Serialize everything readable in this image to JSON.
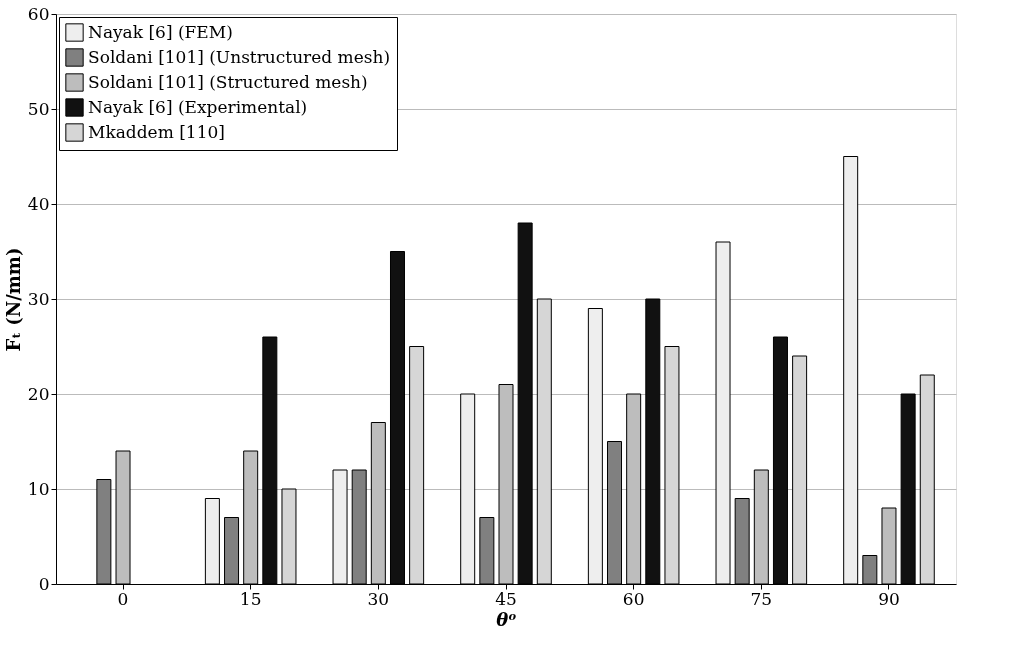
{
  "chart_data": {
    "type": "bar",
    "xlabel": "θᵒ",
    "ylabel": "Fₜ (N/mm)",
    "categories": [
      "0",
      "15",
      "30",
      "45",
      "60",
      "75",
      "90"
    ],
    "series": [
      {
        "name": "Nayak [6] (FEM)",
        "color": "#eeeeee",
        "values": [
          null,
          9,
          12,
          20,
          29,
          36,
          45
        ]
      },
      {
        "name": "Soldani [101] (Unstructured mesh)",
        "color": "#808080",
        "values": [
          11,
          7,
          12,
          7,
          15,
          9,
          3
        ]
      },
      {
        "name": "Soldani [101] (Structured mesh)",
        "color": "#bdbdbd",
        "values": [
          14,
          14,
          17,
          21,
          20,
          12,
          8
        ]
      },
      {
        "name": "Nayak [6] (Experimental)",
        "color": "#111111",
        "values": [
          null,
          26,
          35,
          38,
          30,
          26,
          20
        ]
      },
      {
        "name": "Mkaddem [110]",
        "color": "#d6d6d6",
        "values": [
          null,
          10,
          25,
          30,
          25,
          24,
          22
        ]
      }
    ],
    "ylim": [
      0,
      60
    ],
    "yticks": [
      0,
      10,
      20,
      30,
      40,
      50,
      60
    ],
    "grid": "y",
    "legend": "top left"
  }
}
